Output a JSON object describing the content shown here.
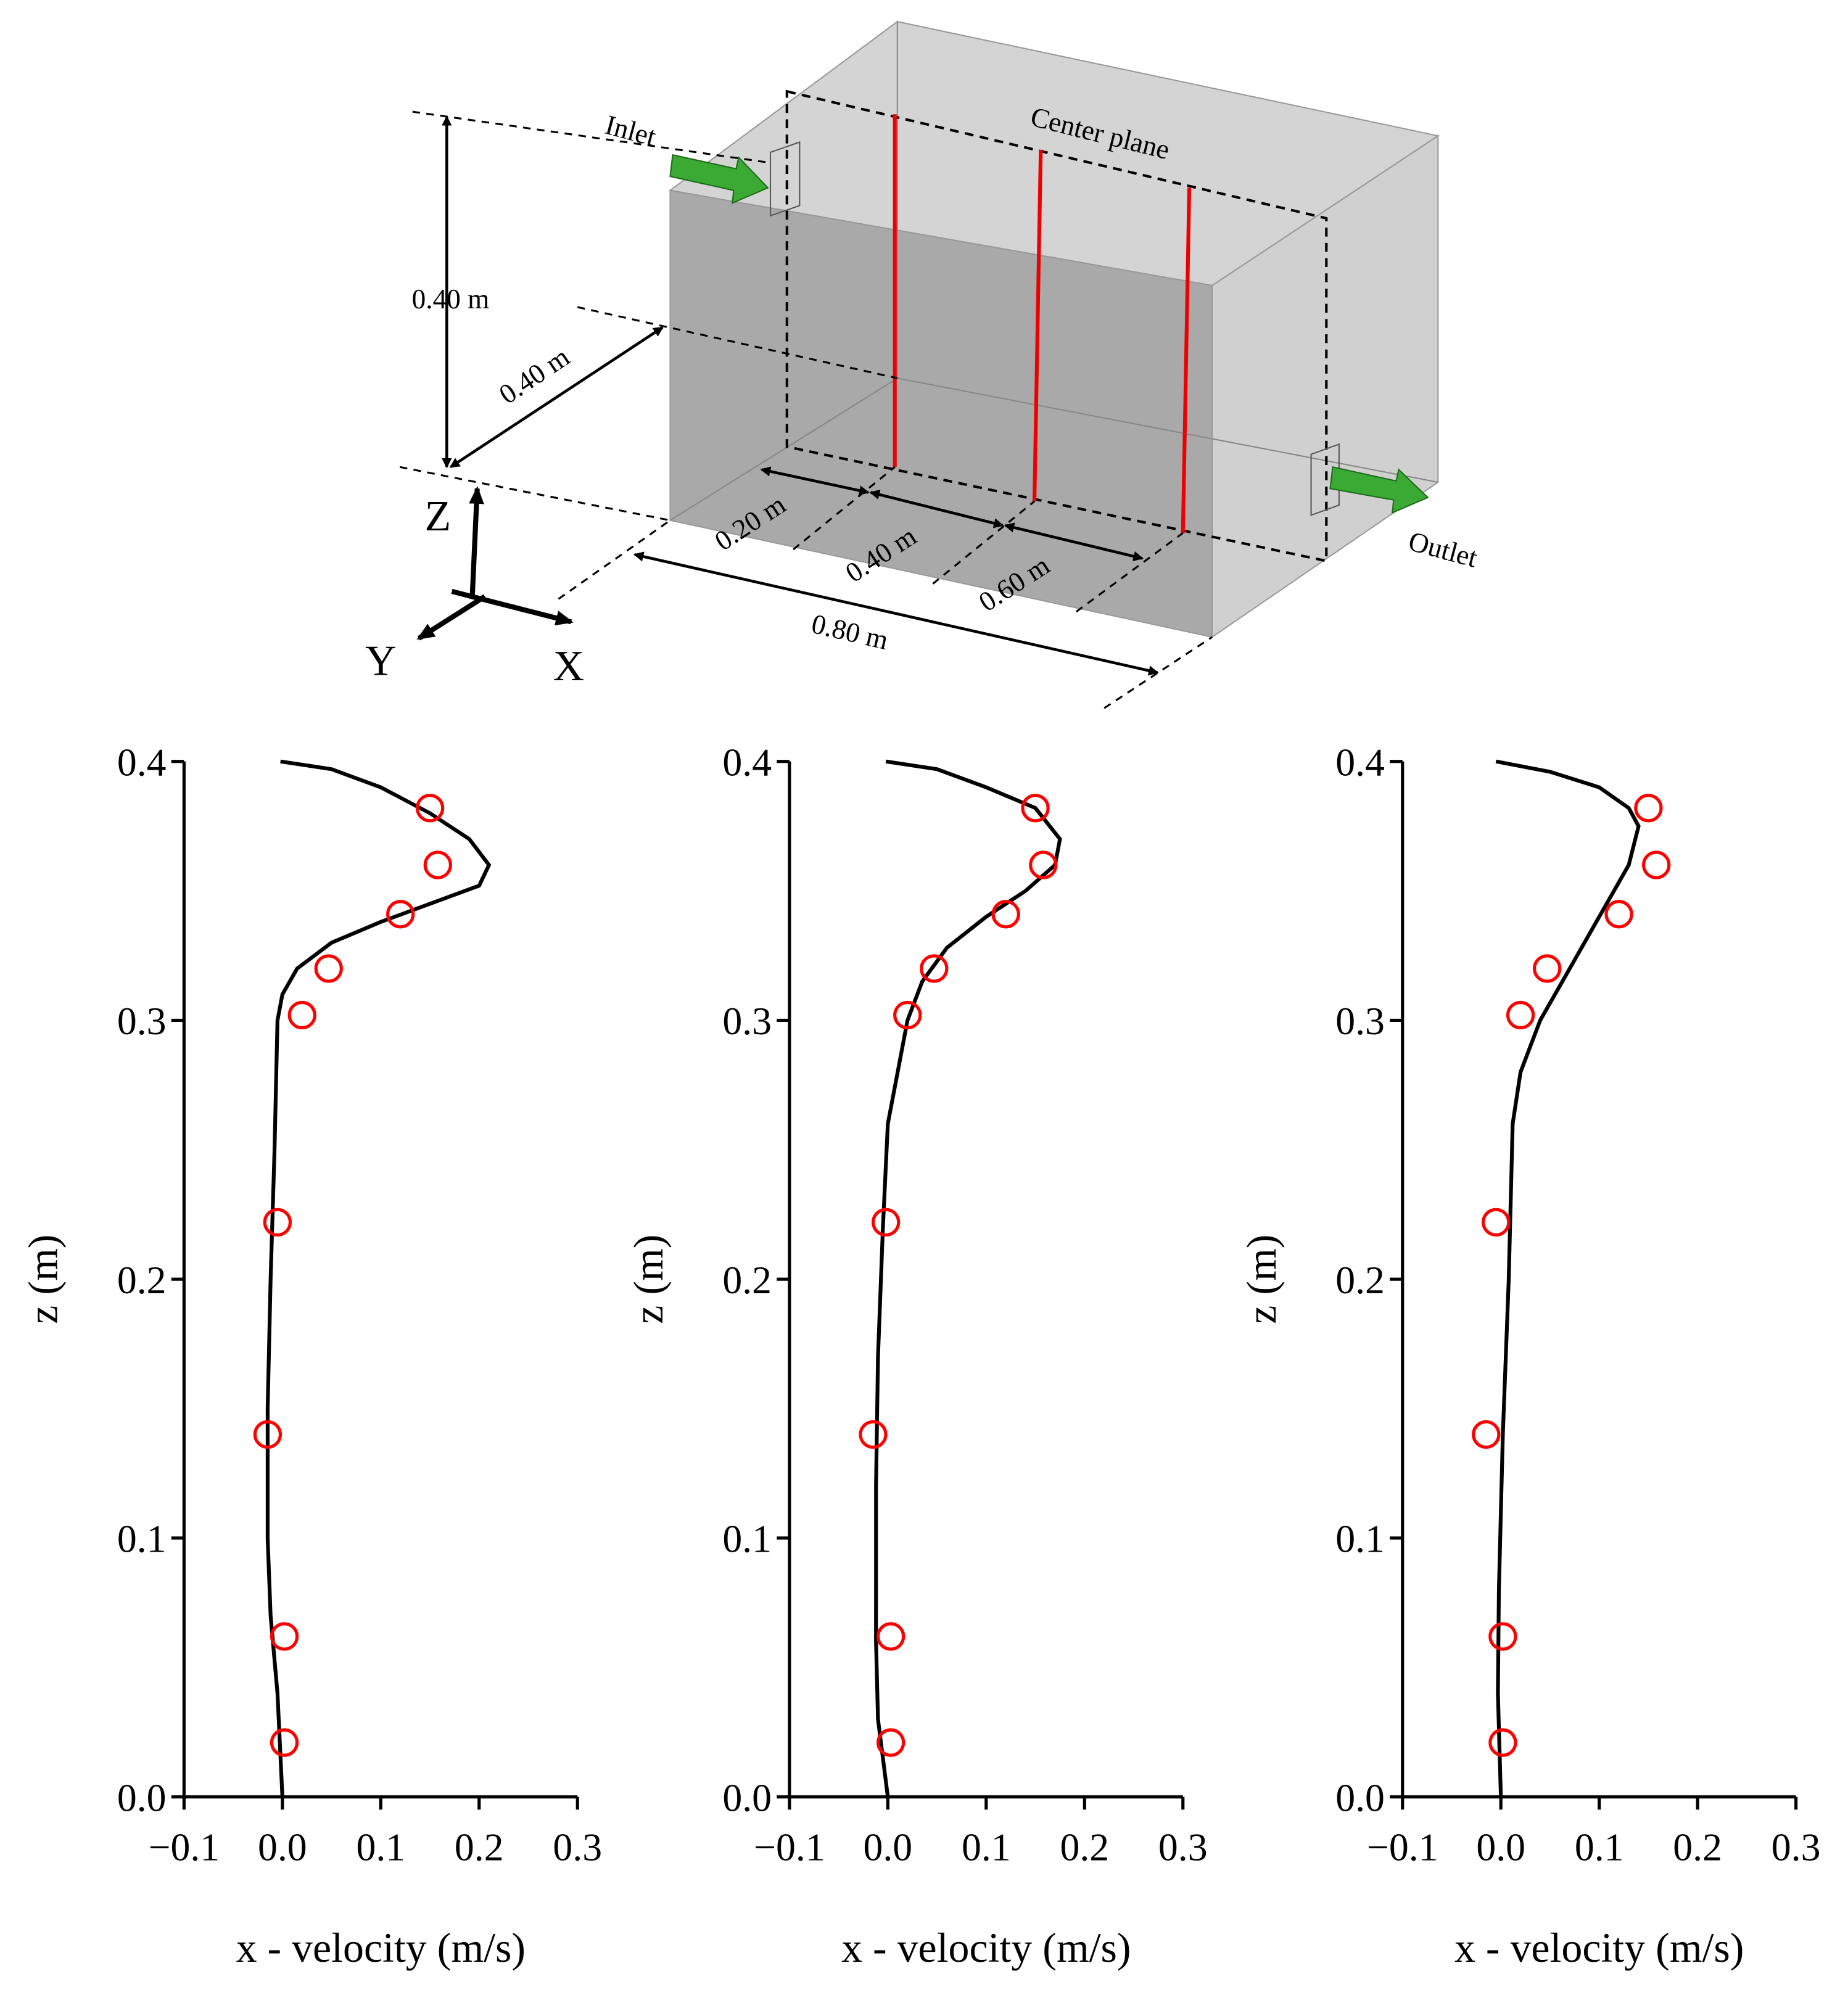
{
  "diagram": {
    "inlet": "Inlet",
    "center_plane": "Center plane",
    "outlet": "Outlet",
    "height": "0.40 m",
    "depth": "0.40 m",
    "dist_1": "0.20 m",
    "dist_2": "0.40 m",
    "dist_3": "0.60 m",
    "length": "0.80 m",
    "axis_z": "Z",
    "axis_y": "Y",
    "axis_x": "X"
  },
  "chart_data": [
    {
      "type": "line",
      "xlabel": "x - velocity (m/s)",
      "ylabel": "z (m)",
      "xlim": [
        -0.1,
        0.3
      ],
      "xticks": [
        {
          "value": -0.1,
          "label": "−0.1"
        },
        {
          "value": 0,
          "label": "0.0"
        },
        0.1,
        0.2,
        0.3
      ],
      "ylim": [
        0,
        0.4
      ],
      "yticks": [
        {
          "value": 0,
          "label": "0.0"
        },
        0.1,
        0.2,
        0.3,
        0.4
      ],
      "series": [
        {
          "type": "line",
          "color": "#000000",
          "x": [
            -0.002,
            0.05,
            0.1,
            0.15,
            0.19,
            0.21,
            0.2,
            0.15,
            0.1,
            0.05,
            0.015,
            0.0,
            -0.005,
            -0.008,
            -0.012,
            -0.015,
            -0.015,
            -0.012,
            -0.005,
            0.0
          ],
          "values": [
            0.4,
            0.397,
            0.39,
            0.38,
            0.37,
            0.36,
            0.352,
            0.345,
            0.338,
            0.33,
            0.32,
            0.31,
            0.3,
            0.25,
            0.2,
            0.15,
            0.1,
            0.07,
            0.04,
            0.0
          ]
        },
        {
          "type": "scatter",
          "color": "#ff0000",
          "x": [
            0.15,
            0.158,
            0.12,
            0.047,
            0.02,
            -0.005,
            -0.015,
            0.002,
            0.002
          ],
          "values": [
            0.382,
            0.36,
            0.341,
            0.32,
            0.302,
            0.222,
            0.14,
            0.062,
            0.021
          ]
        }
      ]
    },
    {
      "type": "line",
      "xlabel": "x - velocity (m/s)",
      "ylabel": "z (m)",
      "xlim": [
        -0.1,
        0.3
      ],
      "xticks": [
        {
          "value": -0.1,
          "label": "−0.1"
        },
        {
          "value": 0,
          "label": "0.0"
        },
        0.1,
        0.2,
        0.3
      ],
      "ylim": [
        0,
        0.4
      ],
      "yticks": [
        {
          "value": 0,
          "label": "0.0"
        },
        0.1,
        0.2,
        0.3,
        0.4
      ],
      "series": [
        {
          "type": "line",
          "color": "#000000",
          "x": [
            -0.002,
            0.05,
            0.1,
            0.15,
            0.175,
            0.17,
            0.14,
            0.1,
            0.06,
            0.035,
            0.02,
            0.01,
            0.0,
            -0.005,
            -0.01,
            -0.012,
            -0.012,
            -0.01,
            0.0
          ],
          "values": [
            0.4,
            0.397,
            0.39,
            0.382,
            0.37,
            0.36,
            0.35,
            0.34,
            0.328,
            0.315,
            0.3,
            0.28,
            0.26,
            0.22,
            0.17,
            0.12,
            0.06,
            0.03,
            0.0
          ]
        },
        {
          "type": "scatter",
          "color": "#ff0000",
          "x": [
            0.15,
            0.158,
            0.12,
            0.047,
            0.02,
            -0.002,
            -0.015,
            0.003,
            0.003
          ],
          "values": [
            0.382,
            0.36,
            0.341,
            0.32,
            0.302,
            0.222,
            0.14,
            0.062,
            0.021
          ]
        }
      ]
    },
    {
      "type": "line",
      "xlabel": "x - velocity (m/s)",
      "ylabel": "z (m)",
      "xlim": [
        -0.1,
        0.3
      ],
      "xticks": [
        {
          "value": -0.1,
          "label": "−0.1"
        },
        {
          "value": 0,
          "label": "0.0"
        },
        0.1,
        0.2,
        0.3
      ],
      "ylim": [
        0,
        0.4
      ],
      "yticks": [
        {
          "value": 0,
          "label": "0.0"
        },
        0.1,
        0.2,
        0.3,
        0.4
      ],
      "series": [
        {
          "type": "line",
          "color": "#000000",
          "x": [
            -0.005,
            0.05,
            0.1,
            0.13,
            0.14,
            0.13,
            0.1,
            0.07,
            0.04,
            0.02,
            0.012,
            0.008,
            0.002,
            -0.002,
            -0.003,
            0.0
          ],
          "values": [
            0.4,
            0.396,
            0.39,
            0.382,
            0.375,
            0.36,
            0.34,
            0.32,
            0.3,
            0.28,
            0.26,
            0.2,
            0.14,
            0.08,
            0.04,
            0.0
          ]
        },
        {
          "type": "scatter",
          "color": "#ff0000",
          "x": [
            0.15,
            0.158,
            0.12,
            0.047,
            0.02,
            -0.005,
            -0.015,
            0.002,
            0.002
          ],
          "values": [
            0.382,
            0.36,
            0.341,
            0.32,
            0.302,
            0.222,
            0.14,
            0.062,
            0.021
          ]
        }
      ]
    }
  ]
}
